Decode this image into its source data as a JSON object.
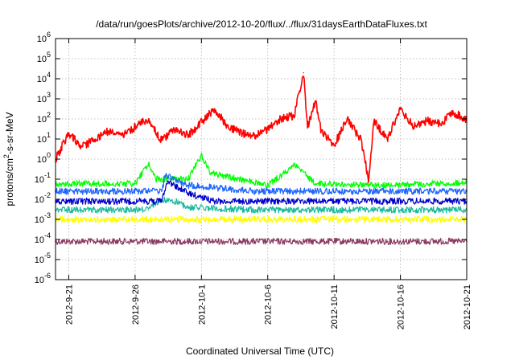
{
  "chart_data": {
    "type": "line",
    "title": "/data/run/goesPlots/archive/2012-10-20/flux/../flux/31daysEarthDataFluxes.txt",
    "xlabel": "Coordinated Universal Time (UTC)",
    "ylabel": {
      "prefix": "protons/cm",
      "sup": "2",
      "suffix": "-s-sr-MeV"
    },
    "y_scale": "log",
    "xlim": [
      "2012-09-20",
      "2012-10-21"
    ],
    "ylim": [
      1e-06,
      1000000.0
    ],
    "grid": true,
    "y_ticks": [
      {
        "base": "10",
        "exp": "-6",
        "value": 1e-06
      },
      {
        "base": "10",
        "exp": "-5",
        "value": 1e-05
      },
      {
        "base": "10",
        "exp": "-4",
        "value": 0.0001
      },
      {
        "base": "10",
        "exp": "-3",
        "value": 0.001
      },
      {
        "base": "10",
        "exp": "-2",
        "value": 0.01
      },
      {
        "base": "10",
        "exp": "-1",
        "value": 0.1
      },
      {
        "base": "10",
        "exp": "0",
        "value": 1
      },
      {
        "base": "10",
        "exp": "1",
        "value": 10.0
      },
      {
        "base": "10",
        "exp": "2",
        "value": 100.0
      },
      {
        "base": "10",
        "exp": "3",
        "value": 1000.0
      },
      {
        "base": "10",
        "exp": "4",
        "value": 10000.0
      },
      {
        "base": "10",
        "exp": "5",
        "value": 100000.0
      },
      {
        "base": "10",
        "exp": "6",
        "value": 1000000.0
      }
    ],
    "x_ticks": [
      {
        "label": "2012-9-21",
        "date": "2012-09-21"
      },
      {
        "label": "2012-9-26",
        "date": "2012-09-26"
      },
      {
        "label": "2012-10-1",
        "date": "2012-10-01"
      },
      {
        "label": "2012-10-6",
        "date": "2012-10-06"
      },
      {
        "label": "2012-10-11",
        "date": "2012-10-11"
      },
      {
        "label": "2012-10-16",
        "date": "2012-10-16"
      },
      {
        "label": "2012-10-21",
        "date": "2012-10-21"
      }
    ],
    "series": [
      {
        "color": "#8b3a62",
        "points": [
          [
            "2012-09-20",
            8e-05
          ],
          [
            "2012-09-25",
            8e-05
          ],
          [
            "2012-09-30",
            8e-05
          ],
          [
            "2012-10-05",
            8e-05
          ],
          [
            "2012-10-10",
            8e-05
          ],
          [
            "2012-10-15",
            8e-05
          ],
          [
            "2012-10-21",
            8e-05
          ]
        ]
      },
      {
        "color": "#ffff00",
        "points": [
          [
            "2012-09-20",
            0.001
          ],
          [
            "2012-09-25",
            0.001
          ],
          [
            "2012-09-30",
            0.001
          ],
          [
            "2012-10-05",
            0.001
          ],
          [
            "2012-10-10",
            0.001
          ],
          [
            "2012-10-15",
            0.001
          ],
          [
            "2012-10-21",
            0.001
          ]
        ]
      },
      {
        "color": "#1abc9c",
        "points": [
          [
            "2012-09-20",
            0.003
          ],
          [
            "2012-09-27",
            0.003
          ],
          [
            "2012-09-28",
            0.01
          ],
          [
            "2012-09-29",
            0.008
          ],
          [
            "2012-09-30",
            0.004
          ],
          [
            "2012-10-05",
            0.003
          ],
          [
            "2012-10-10",
            0.003
          ],
          [
            "2012-10-15",
            0.003
          ],
          [
            "2012-10-21",
            0.003
          ]
        ]
      },
      {
        "color": "#00ff00",
        "points": [
          [
            "2012-09-20",
            0.06
          ],
          [
            "2012-09-26",
            0.06
          ],
          [
            "2012-09-27",
            0.6
          ],
          [
            "2012-09-27.6",
            0.1
          ],
          [
            "2012-09-30",
            0.1
          ],
          [
            "2012-10-01",
            1.5
          ],
          [
            "2012-10-01.7",
            0.2
          ],
          [
            "2012-10-06",
            0.05
          ],
          [
            "2012-10-08",
            0.5
          ],
          [
            "2012-10-09.6",
            0.06
          ],
          [
            "2012-10-15",
            0.05
          ],
          [
            "2012-10-21",
            0.07
          ]
        ]
      },
      {
        "color": "#1e64ff",
        "points": [
          [
            "2012-09-20",
            0.025
          ],
          [
            "2012-09-28",
            0.025
          ],
          [
            "2012-09-28.3",
            0.15
          ],
          [
            "2012-09-30",
            0.05
          ],
          [
            "2012-10-05",
            0.025
          ],
          [
            "2012-10-10",
            0.025
          ],
          [
            "2012-10-15",
            0.025
          ],
          [
            "2012-10-21",
            0.025
          ]
        ]
      },
      {
        "color": "#0000cc",
        "points": [
          [
            "2012-09-20",
            0.008
          ],
          [
            "2012-09-28",
            0.008
          ],
          [
            "2012-09-28.4",
            0.08
          ],
          [
            "2012-09-30",
            0.02
          ],
          [
            "2012-10-02",
            0.008
          ],
          [
            "2012-10-10",
            0.008
          ],
          [
            "2012-10-15",
            0.008
          ],
          [
            "2012-10-21",
            0.008
          ]
        ]
      },
      {
        "color": "#ff0000",
        "points": [
          [
            "2012-09-20",
            1.0
          ],
          [
            "2012-09-21",
            20
          ],
          [
            "2012-09-22",
            4
          ],
          [
            "2012-09-23",
            10
          ],
          [
            "2012-09-24",
            25
          ],
          [
            "2012-09-25",
            15
          ],
          [
            "2012-09-26",
            40
          ],
          [
            "2012-09-27",
            100
          ],
          [
            "2012-09-28",
            8
          ],
          [
            "2012-09-29",
            30
          ],
          [
            "2012-09-30",
            15
          ],
          [
            "2012-10-01",
            70
          ],
          [
            "2012-10-02",
            300
          ],
          [
            "2012-10-03",
            40
          ],
          [
            "2012-10-04",
            20
          ],
          [
            "2012-10-05",
            15
          ],
          [
            "2012-10-06",
            30
          ],
          [
            "2012-10-07",
            100
          ],
          [
            "2012-10-08",
            150
          ],
          [
            "2012-10-08.7",
            20000
          ],
          [
            "2012-10-09",
            40
          ],
          [
            "2012-10-09.6",
            800
          ],
          [
            "2012-10-10",
            30
          ],
          [
            "2012-10-11",
            5
          ],
          [
            "2012-10-12",
            100
          ],
          [
            "2012-10-13",
            10
          ],
          [
            "2012-10-13.6",
            0.1
          ],
          [
            "2012-10-14",
            80
          ],
          [
            "2012-10-15",
            10
          ],
          [
            "2012-10-16",
            300
          ],
          [
            "2012-10-17",
            40
          ],
          [
            "2012-10-18",
            80
          ],
          [
            "2012-10-19",
            60
          ],
          [
            "2012-10-20",
            200
          ],
          [
            "2012-10-21",
            100
          ]
        ]
      }
    ]
  }
}
